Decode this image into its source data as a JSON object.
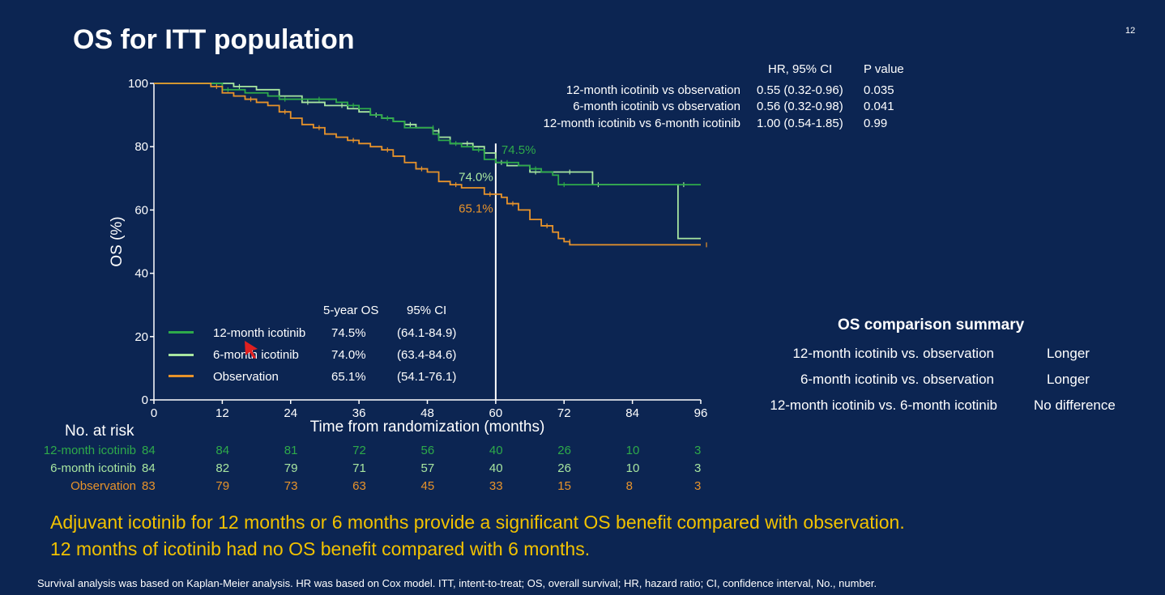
{
  "slide": {
    "title": "OS for ITT population",
    "page_number": "12",
    "conclusion": [
      "Adjuvant icotinib for 12 months or 6 months provide a significant OS benefit compared with observation.",
      "12 months of icotinib had no OS benefit compared with 6 months."
    ],
    "footnote": "Survival analysis was based on Kaplan-Meier analysis. HR was based on Cox model. ITT, intent-to-treat; OS, overall survival; HR, hazard ratio; CI, confidence interval, No., number."
  },
  "hr_table": {
    "headers": [
      "HR, 95% CI",
      "P value"
    ],
    "rows": [
      {
        "label": "12-month icotinib vs observation",
        "hr": "0.55 (0.32-0.96)",
        "p": "0.035"
      },
      {
        "label": "6-month icotinib vs observation",
        "hr": "0.56 (0.32-0.98)",
        "p": "0.041"
      },
      {
        "label": "12-month icotinib vs 6-month icotinib",
        "hr": "1.00 (0.54-1.85)",
        "p": "0.99"
      }
    ]
  },
  "summary": {
    "title": "OS comparison summary",
    "rows": [
      {
        "label": "12-month icotinib vs. observation",
        "result": "Longer"
      },
      {
        "label": "6-month icotinib vs. observation",
        "result": "Longer"
      },
      {
        "label": "12-month icotinib vs. 6-month icotinib",
        "result": "No difference"
      }
    ]
  },
  "legend": {
    "headers": [
      "5-year OS",
      "95% CI"
    ],
    "rows": [
      {
        "label": "12-month icotinib",
        "os": "74.5%",
        "ci": "(64.1-84.9)",
        "color": "#2eaa4a"
      },
      {
        "label": "6-month icotinib",
        "os": "74.0%",
        "ci": "(63.4-84.6)",
        "color": "#a8e6a0"
      },
      {
        "label": "Observation",
        "os": "65.1%",
        "ci": "(54.1-76.1)",
        "color": "#e8932a"
      }
    ]
  },
  "risk_table": {
    "title": "No. at risk",
    "rows": [
      {
        "label": "12-month icotinib",
        "color": "#2eaa4a",
        "values": [
          "84",
          "84",
          "81",
          "72",
          "56",
          "40",
          "26",
          "10",
          "3"
        ]
      },
      {
        "label": "6-month icotinib",
        "color": "#a8e6a0",
        "values": [
          "84",
          "82",
          "79",
          "71",
          "57",
          "40",
          "26",
          "10",
          "3"
        ]
      },
      {
        "label": "Observation",
        "color": "#e8932a",
        "values": [
          "83",
          "79",
          "73",
          "63",
          "45",
          "33",
          "15",
          "8",
          "3"
        ]
      }
    ]
  },
  "chart_data": {
    "type": "line",
    "title": "",
    "xlabel": "Time from randomization (months)",
    "ylabel": "OS (%)",
    "xlim": [
      0,
      96
    ],
    "ylim": [
      0,
      100
    ],
    "xticks": [
      0,
      12,
      24,
      36,
      48,
      60,
      72,
      84,
      96
    ],
    "yticks": [
      0,
      20,
      40,
      60,
      80,
      100
    ],
    "reference_line_x": 60,
    "annotations": [
      {
        "text": "74.5%",
        "x": 61,
        "y": 79,
        "color": "#2eaa4a"
      },
      {
        "text": "74.0%",
        "x": 53.5,
        "y": 70.5,
        "color": "#a8e6a0"
      },
      {
        "text": "65.1%",
        "x": 53.5,
        "y": 60.5,
        "color": "#e8932a"
      }
    ],
    "series": [
      {
        "name": "6-month icotinib",
        "color": "#a8e6a0",
        "points": [
          [
            0,
            100
          ],
          [
            10,
            100
          ],
          [
            14,
            99
          ],
          [
            18,
            98
          ],
          [
            22,
            96
          ],
          [
            26,
            94
          ],
          [
            28,
            94
          ],
          [
            30,
            93
          ],
          [
            32,
            93
          ],
          [
            34,
            92
          ],
          [
            36,
            91
          ],
          [
            38,
            90
          ],
          [
            40,
            89
          ],
          [
            42,
            88
          ],
          [
            44,
            87
          ],
          [
            46,
            86
          ],
          [
            48,
            86
          ],
          [
            49,
            85
          ],
          [
            50,
            83
          ],
          [
            52,
            81
          ],
          [
            54,
            81
          ],
          [
            56,
            80
          ],
          [
            58,
            78
          ],
          [
            60,
            75
          ],
          [
            62,
            74
          ],
          [
            64,
            74
          ],
          [
            66,
            72
          ],
          [
            68,
            72
          ],
          [
            70,
            72
          ],
          [
            72,
            72
          ],
          [
            74,
            72
          ],
          [
            77,
            72
          ],
          [
            77,
            68
          ],
          [
            86,
            68
          ],
          [
            92,
            68
          ],
          [
            92,
            68
          ],
          [
            92,
            51
          ],
          [
            96,
            51
          ]
        ]
      },
      {
        "name": "12-month icotinib",
        "color": "#2eaa4a",
        "points": [
          [
            0,
            100
          ],
          [
            9,
            100
          ],
          [
            12,
            98
          ],
          [
            16,
            97
          ],
          [
            20,
            96
          ],
          [
            22,
            95
          ],
          [
            24,
            95
          ],
          [
            26,
            95
          ],
          [
            28,
            95
          ],
          [
            30,
            95
          ],
          [
            32,
            94
          ],
          [
            34,
            93
          ],
          [
            36,
            92
          ],
          [
            38,
            90
          ],
          [
            40,
            89
          ],
          [
            42,
            88
          ],
          [
            44,
            86
          ],
          [
            48,
            86
          ],
          [
            49,
            84
          ],
          [
            50,
            82
          ],
          [
            52,
            81
          ],
          [
            54,
            80
          ],
          [
            55,
            80
          ],
          [
            56,
            79
          ],
          [
            58,
            76
          ],
          [
            60,
            75
          ],
          [
            61,
            75
          ],
          [
            62,
            75
          ],
          [
            64,
            74
          ],
          [
            66,
            73
          ],
          [
            68,
            72
          ],
          [
            70,
            71
          ],
          [
            71,
            68
          ],
          [
            86,
            68
          ],
          [
            96,
            68
          ]
        ]
      },
      {
        "name": "Observation",
        "color": "#e8932a",
        "points": [
          [
            0,
            100
          ],
          [
            8,
            100
          ],
          [
            10,
            99
          ],
          [
            12,
            97
          ],
          [
            14,
            96
          ],
          [
            16,
            95
          ],
          [
            18,
            94
          ],
          [
            20,
            93
          ],
          [
            22,
            91
          ],
          [
            24,
            89
          ],
          [
            26,
            87
          ],
          [
            28,
            86
          ],
          [
            30,
            84
          ],
          [
            32,
            83
          ],
          [
            34,
            82
          ],
          [
            36,
            81
          ],
          [
            38,
            80
          ],
          [
            40,
            79
          ],
          [
            42,
            77
          ],
          [
            44,
            75
          ],
          [
            46,
            73
          ],
          [
            48,
            72
          ],
          [
            50,
            69
          ],
          [
            52,
            68
          ],
          [
            54,
            67
          ],
          [
            56,
            67
          ],
          [
            58,
            65
          ],
          [
            60,
            65
          ],
          [
            61,
            64
          ],
          [
            62,
            62
          ],
          [
            64,
            60
          ],
          [
            66,
            57
          ],
          [
            68,
            55
          ],
          [
            70,
            53
          ],
          [
            71,
            51
          ],
          [
            72,
            50
          ],
          [
            73,
            49
          ],
          [
            80,
            49
          ],
          [
            96,
            49
          ]
        ]
      }
    ]
  }
}
